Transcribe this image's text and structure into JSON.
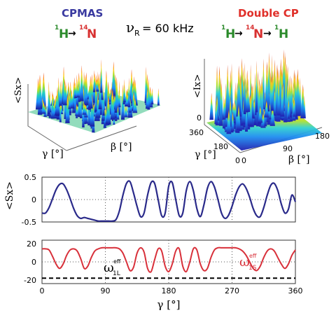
{
  "headers": {
    "left_title": "CPMAS",
    "left_color": "#3a3aa0",
    "left_transfer": {
      "h": "H",
      "h_mass": "1",
      "arrow": "→",
      "n": "N",
      "n_mass": "14"
    },
    "center_rate": {
      "nu": "ν",
      "sub": "R",
      "value": "= 60 kHz"
    },
    "right_title": "Double CP",
    "right_color": "#e0302a",
    "right_transfer": {
      "h1": "H",
      "h1_mass": "1",
      "arrow1": "→",
      "n": "N",
      "n_mass": "14",
      "arrow2": "→",
      "h2": "H",
      "h2_mass": "1"
    },
    "h_color": "#2a8a2a",
    "n_color": "#d83030"
  },
  "chart_data": [
    {
      "type": "surface3d",
      "ylabel": "<Sx>",
      "xlabel_gamma": "γ [°]",
      "xlabel_beta": "β [°]"
    },
    {
      "type": "surface3d",
      "ylabel": "<Ix>",
      "zticks": [
        "0"
      ],
      "gamma_ticks": [
        "360",
        "180",
        "0"
      ],
      "beta_ticks": [
        "0",
        "90",
        "180"
      ],
      "xlabel_gamma": "γ [°]",
      "xlabel_beta": "β [°]"
    },
    {
      "type": "line",
      "ylabel": "<Sx>",
      "xlim": [
        0,
        360
      ],
      "ylim": [
        -0.5,
        0.5
      ],
      "yticks": [
        "0.5",
        "0",
        "-0.5"
      ],
      "grid": true,
      "series": [
        {
          "color": "#2a2a8a",
          "x": [
            0,
            5,
            10,
            15,
            20,
            25,
            30,
            35,
            40,
            45,
            50,
            55,
            60,
            65,
            70,
            75,
            80,
            85,
            90,
            95,
            100,
            105,
            110,
            115,
            120,
            125,
            130,
            135,
            140,
            145,
            150,
            155,
            160,
            165,
            170,
            175,
            180,
            185,
            190,
            195,
            200,
            205,
            210,
            215,
            220,
            225,
            230,
            235,
            240,
            245,
            250,
            255,
            260,
            265,
            270,
            275,
            280,
            285,
            290,
            295,
            300,
            305,
            310,
            315,
            320,
            325,
            330,
            335,
            340,
            345,
            350,
            355,
            360
          ],
          "values": [
            -0.3,
            -0.3,
            -0.18,
            0.02,
            0.22,
            0.34,
            0.35,
            0.22,
            0.02,
            -0.2,
            -0.36,
            -0.42,
            -0.4,
            -0.42,
            -0.44,
            -0.46,
            -0.48,
            -0.48,
            -0.48,
            -0.48,
            -0.48,
            -0.45,
            -0.25,
            0.1,
            0.36,
            0.4,
            0.15,
            -0.15,
            -0.38,
            -0.3,
            0.1,
            0.38,
            0.36,
            0.0,
            -0.36,
            -0.3,
            0.3,
            0.38,
            0.0,
            -0.36,
            -0.3,
            0.2,
            0.4,
            0.2,
            -0.2,
            -0.38,
            -0.12,
            0.25,
            0.4,
            0.28,
            0.0,
            -0.3,
            -0.42,
            -0.35,
            -0.15,
            0.1,
            0.28,
            0.35,
            0.25,
            0.05,
            -0.2,
            -0.36,
            -0.38,
            -0.18,
            0.1,
            0.32,
            0.36,
            0.2,
            -0.1,
            -0.3,
            -0.22,
            0.1,
            -0.05
          ]
        }
      ]
    },
    {
      "type": "line",
      "xlabel": "γ [°]",
      "xlim": [
        0,
        360
      ],
      "ylim": [
        -20,
        20
      ],
      "xticks": [
        "0",
        "90",
        "180",
        "270",
        "360"
      ],
      "yticks": [
        "20",
        "0",
        "-20"
      ],
      "grid": true,
      "series": [
        {
          "color": "#d8303a",
          "x": [
            0,
            5,
            10,
            15,
            20,
            25,
            30,
            35,
            40,
            45,
            50,
            55,
            60,
            65,
            70,
            75,
            80,
            85,
            90,
            95,
            100,
            105,
            110,
            115,
            120,
            125,
            130,
            135,
            140,
            145,
            150,
            155,
            160,
            165,
            170,
            175,
            180,
            185,
            190,
            195,
            200,
            205,
            210,
            215,
            220,
            225,
            230,
            235,
            240,
            245,
            250,
            255,
            260,
            265,
            270,
            275,
            280,
            285,
            290,
            295,
            300,
            305,
            310,
            315,
            320,
            325,
            330,
            335,
            340,
            345,
            350,
            355,
            360
          ],
          "values": [
            12,
            12,
            11,
            5,
            -2,
            -6,
            -2,
            6,
            11,
            12,
            10,
            3,
            -6,
            -4,
            4,
            10,
            12,
            13,
            13,
            13,
            13,
            13,
            12,
            8,
            0,
            -8,
            -5,
            8,
            13,
            9,
            -6,
            -9,
            2,
            12,
            10,
            -4,
            -9,
            -2,
            10,
            12,
            -4,
            -9,
            0,
            12,
            11,
            -2,
            -8,
            -6,
            4,
            11,
            13,
            13,
            13,
            13,
            13,
            13,
            12,
            10,
            6,
            0,
            -6,
            -8,
            -4,
            4,
            10,
            12,
            10,
            4,
            -2,
            -6,
            -2,
            6,
            11
          ]
        },
        {
          "color": "#000000",
          "dashed": true,
          "x": [
            0,
            360
          ],
          "values": [
            -15,
            -15
          ]
        }
      ],
      "annotations": [
        {
          "text": "ω",
          "sub": "1L",
          "sup": "eff",
          "color": "#000000"
        },
        {
          "text": "ω",
          "sub": "1S",
          "sup": "eff",
          "color": "#d8303a"
        }
      ]
    }
  ]
}
